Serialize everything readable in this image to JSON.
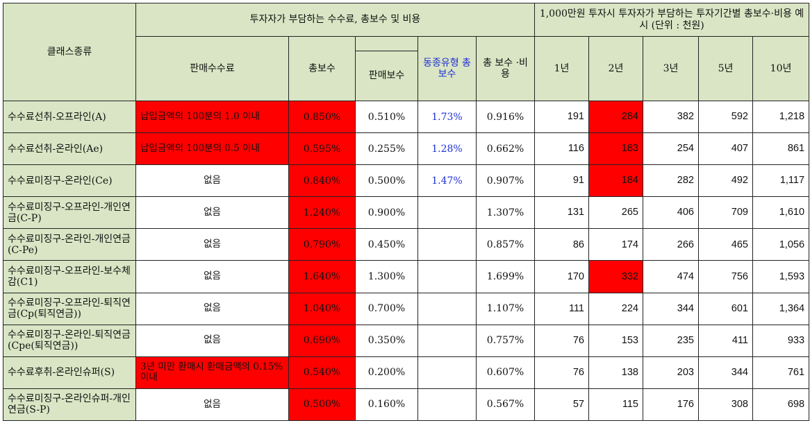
{
  "header": {
    "class_type": "클래스종류",
    "group_investor_fee": "투자자가 부담하는 수수료, 총보수 및 비용",
    "group_example": "1,000만원 투자시 투자자가 부담하는 투자기간별 총보수·비용 예시 (단위 : 천원)",
    "sales_fee": "판매수수료",
    "total_fee": "총보수",
    "sales_comp": "판매보수",
    "peer_total_fee": "동종유형 총보수",
    "total_cost": "총 보수 ·비용",
    "y1": "1년",
    "y2": "2년",
    "y3": "3년",
    "y5": "5년",
    "y10": "10년"
  },
  "rows": [
    {
      "name": "수수료선취-오프라인(A)",
      "sales_fee": "납입금액의 100분의 1.0 이내",
      "total_fee": "0.850%",
      "sales_comp": "0.510%",
      "peer": "1.73%",
      "total_cost": "0.916%",
      "y1": "191",
      "y2": "284",
      "y3": "382",
      "y5": "592",
      "y10": "1,218"
    },
    {
      "name": "수수료선취-온라인(Ae)",
      "sales_fee": "납입금액의 100분의 0.5 이내",
      "total_fee": "0.595%",
      "sales_comp": "0.255%",
      "peer": "1.28%",
      "total_cost": "0.662%",
      "y1": "116",
      "y2": "183",
      "y3": "254",
      "y5": "407",
      "y10": "861"
    },
    {
      "name": "수수료미징구-온라인(Ce)",
      "sales_fee": "없음",
      "total_fee": "0.840%",
      "sales_comp": "0.500%",
      "peer": "1.47%",
      "total_cost": "0.907%",
      "y1": "91",
      "y2": "184",
      "y3": "282",
      "y5": "492",
      "y10": "1,117"
    },
    {
      "name": "수수료미징구-오프라인-개인연금(C-P)",
      "sales_fee": "없음",
      "total_fee": "1.240%",
      "sales_comp": "0.900%",
      "peer": "",
      "total_cost": "1.307%",
      "y1": "131",
      "y2": "265",
      "y3": "406",
      "y5": "709",
      "y10": "1,610"
    },
    {
      "name": "수수료미징구-온라인-개인연금(C-Pe)",
      "sales_fee": "없음",
      "total_fee": "0.790%",
      "sales_comp": "0.450%",
      "peer": "",
      "total_cost": "0.857%",
      "y1": "86",
      "y2": "174",
      "y3": "266",
      "y5": "465",
      "y10": "1,056"
    },
    {
      "name": "수수료미징구-오프라인-보수체감(C1)",
      "sales_fee": "없음",
      "total_fee": "1.640%",
      "sales_comp": "1.300%",
      "peer": "",
      "total_cost": "1.699%",
      "y1": "170",
      "y2": "332",
      "y3": "474",
      "y5": "756",
      "y10": "1,593"
    },
    {
      "name": "수수료미징구-오프라인-퇴직연금(Cp(퇴직연금))",
      "sales_fee": "없음",
      "total_fee": "1.040%",
      "sales_comp": "0.700%",
      "peer": "",
      "total_cost": "1.107%",
      "y1": "111",
      "y2": "224",
      "y3": "344",
      "y5": "601",
      "y10": "1,364"
    },
    {
      "name": "수수료미징구-온라인-퇴직연금(Cpe(퇴직연금))",
      "sales_fee": "없음",
      "total_fee": "0.690%",
      "sales_comp": "0.350%",
      "peer": "",
      "total_cost": "0.757%",
      "y1": "76",
      "y2": "153",
      "y3": "235",
      "y5": "411",
      "y10": "933"
    },
    {
      "name": "수수료후취-온라인슈퍼(S)",
      "sales_fee": "3년 미만 환매시 환매금액의 0.15% 이내",
      "total_fee": "0.540%",
      "sales_comp": "0.200%",
      "peer": "",
      "total_cost": "0.607%",
      "y1": "76",
      "y2": "138",
      "y3": "203",
      "y5": "344",
      "y10": "761"
    },
    {
      "name": "수수료미징구-온라인슈퍼-개인연금(S-P)",
      "sales_fee": "없음",
      "total_fee": "0.500%",
      "sales_comp": "0.160%",
      "peer": "",
      "total_cost": "0.567%",
      "y1": "57",
      "y2": "115",
      "y3": "176",
      "y5": "308",
      "y10": "698"
    }
  ],
  "colors": {
    "header_bg": "#d9e5c4",
    "highlight": "#ff0000",
    "blue_text": "#1f2fd6"
  }
}
